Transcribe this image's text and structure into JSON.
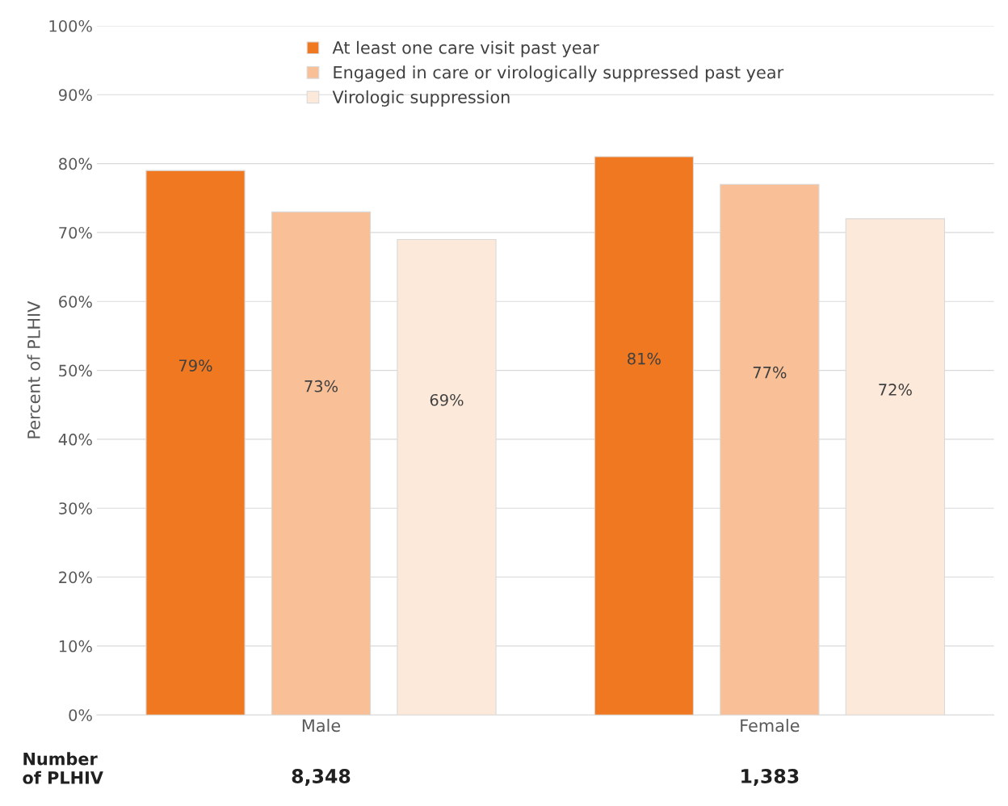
{
  "chart_data": {
    "type": "bar",
    "ylabel": "Percent of PLHIV",
    "categories": [
      "Male",
      "Female"
    ],
    "series": [
      {
        "name": "At least one care visit past year",
        "color": "#f07820",
        "values": [
          79,
          81
        ],
        "value_labels": [
          "79%",
          "81%"
        ]
      },
      {
        "name": "Engaged in care or virologically suppressed past year",
        "color": "#f9bf96",
        "values": [
          73,
          77
        ],
        "value_labels": [
          "73%",
          "77%"
        ]
      },
      {
        "name": "Virologic suppression",
        "color": "#fde9d9",
        "values": [
          69,
          72
        ],
        "value_labels": [
          "69%",
          "72%"
        ]
      }
    ],
    "ylim": [
      0,
      100
    ],
    "yticks": [
      {
        "value": 0,
        "label": "0%"
      },
      {
        "value": 10,
        "label": "10%"
      },
      {
        "value": 20,
        "label": "20%"
      },
      {
        "value": 30,
        "label": "30%"
      },
      {
        "value": 40,
        "label": "40%"
      },
      {
        "value": 50,
        "label": "50%"
      },
      {
        "value": 60,
        "label": "60%"
      },
      {
        "value": 70,
        "label": "70%"
      },
      {
        "value": 80,
        "label": "80%"
      },
      {
        "value": 90,
        "label": "90%"
      },
      {
        "value": 100,
        "label": "100%"
      }
    ],
    "grid": "y",
    "legend": "top",
    "annotations": [
      "Number\nof PLHIV",
      "8,348",
      "1,383"
    ]
  }
}
